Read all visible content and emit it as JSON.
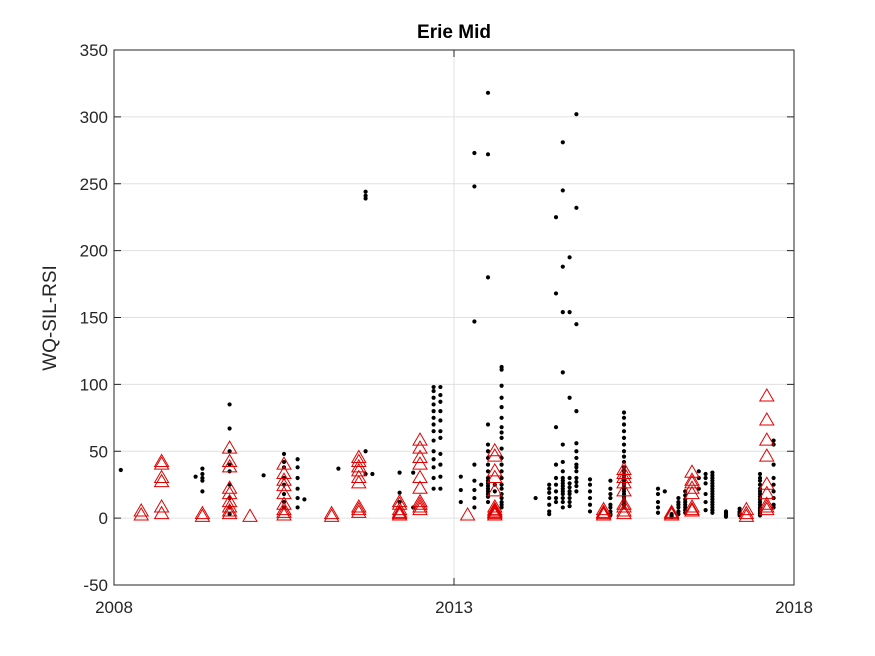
{
  "chart_data": {
    "type": "scatter",
    "title": "Erie Mid",
    "xlabel": "",
    "ylabel": "WQ-SIL-RSI",
    "xlim": [
      2008,
      2018
    ],
    "ylim": [
      -50,
      350
    ],
    "xticks": [
      2008,
      2013,
      2018
    ],
    "yticks": [
      -50,
      0,
      50,
      100,
      150,
      200,
      250,
      300,
      350
    ],
    "x_tick_labels": [
      "2008",
      "2013",
      "2018"
    ],
    "y_tick_labels": [
      "-50",
      "0",
      "50",
      "100",
      "150",
      "200",
      "250",
      "300",
      "350"
    ],
    "grid": true,
    "colors": {
      "dots": "#000000",
      "triangles": "#e00000",
      "axes": "#262626",
      "grid": "#e0e0e0"
    },
    "series": [
      {
        "marker": "dot",
        "x": [
          2008.1,
          2009.2,
          2009.3,
          2009.3,
          2009.3,
          2009.3,
          2009.3,
          2009.7,
          2009.7,
          2009.7,
          2009.7,
          2009.7,
          2009.7,
          2009.7,
          2009.7,
          2009.7,
          2010.2,
          2010.5,
          2010.5,
          2010.5,
          2010.5,
          2010.5,
          2010.5,
          2010.5,
          2010.5,
          2010.7,
          2010.7,
          2010.7,
          2010.7,
          2010.7,
          2010.7,
          2010.8,
          2011.3,
          2011.7,
          2011.7,
          2011.7,
          2011.7,
          2011.7,
          2011.8,
          2012.2,
          2012.2,
          2012.2,
          2012.4,
          2012.4,
          2012.7,
          2012.7,
          2012.7,
          2012.7,
          2012.7,
          2012.7,
          2012.7,
          2012.7,
          2012.7,
          2012.7,
          2012.7,
          2012.7,
          2012.7,
          2012.7,
          2012.8,
          2012.8,
          2012.8,
          2012.8,
          2012.8,
          2012.8,
          2012.8,
          2012.8,
          2012.8,
          2012.8,
          2012.8,
          2013.1,
          2013.1,
          2013.1,
          2013.3,
          2013.3,
          2013.3,
          2013.3,
          2013.3,
          2013.3,
          2013.3,
          2013.3,
          2013.4,
          2013.5,
          2013.5,
          2013.5,
          2013.5,
          2013.5,
          2013.5,
          2013.5,
          2013.5,
          2013.5,
          2013.5,
          2013.5,
          2013.5,
          2013.5,
          2013.5,
          2013.5,
          2013.5,
          2013.5,
          2013.5,
          2013.6,
          2013.6,
          2013.7,
          2013.7,
          2013.7,
          2013.7,
          2013.7,
          2013.7,
          2013.7,
          2013.7,
          2013.7,
          2013.7,
          2013.7,
          2013.7,
          2013.7,
          2013.7,
          2013.7,
          2013.7,
          2013.7,
          2013.7,
          2013.7,
          2013.7,
          2013.7,
          2014.2,
          2014.4,
          2014.4,
          2014.4,
          2014.4,
          2014.4,
          2014.4,
          2014.4,
          2014.5,
          2014.5,
          2014.5,
          2014.5,
          2014.5,
          2014.5,
          2014.5,
          2014.5,
          2014.5,
          2014.6,
          2014.6,
          2014.6,
          2014.6,
          2014.6,
          2014.6,
          2014.6,
          2014.6,
          2014.6,
          2014.6,
          2014.6,
          2014.6,
          2014.6,
          2014.6,
          2014.6,
          2014.6,
          2014.6,
          2014.6,
          2014.7,
          2014.7,
          2014.7,
          2014.7,
          2014.7,
          2014.7,
          2014.7,
          2014.7,
          2014.7,
          2014.7,
          2014.7,
          2014.8,
          2014.8,
          2014.8,
          2014.8,
          2014.8,
          2014.8,
          2014.8,
          2014.8,
          2014.8,
          2014.8,
          2014.8,
          2014.8,
          2014.8,
          2014.8,
          2015.0,
          2015.0,
          2015.0,
          2015.0,
          2015.0,
          2015.0,
          2015.3,
          2015.3,
          2015.3,
          2015.3,
          2015.3,
          2015.3,
          2015.3,
          2015.3,
          2015.3,
          2015.5,
          2015.5,
          2015.5,
          2015.5,
          2015.5,
          2015.5,
          2015.5,
          2015.5,
          2015.5,
          2015.5,
          2015.5,
          2015.5,
          2015.5,
          2015.5,
          2015.5,
          2015.5,
          2015.5,
          2015.5,
          2015.5,
          2015.5,
          2015.5,
          2015.5,
          2015.5,
          2015.5,
          2016.0,
          2016.0,
          2016.0,
          2016.0,
          2016.0,
          2016.1,
          2016.2,
          2016.2,
          2016.2,
          2016.3,
          2016.3,
          2016.3,
          2016.3,
          2016.3,
          2016.3,
          2016.4,
          2016.4,
          2016.4,
          2016.4,
          2016.4,
          2016.4,
          2016.4,
          2016.4,
          2016.6,
          2016.6,
          2016.6,
          2016.7,
          2016.7,
          2016.7,
          2016.7,
          2016.7,
          2016.7,
          2016.8,
          2016.8,
          2016.8,
          2016.8,
          2016.8,
          2016.8,
          2016.8,
          2016.8,
          2016.8,
          2016.8,
          2016.8,
          2016.8,
          2016.8,
          2016.8,
          2016.8,
          2016.8,
          2017.0,
          2017.0,
          2017.0,
          2017.0,
          2017.0,
          2017.2,
          2017.2,
          2017.2,
          2017.2,
          2017.2,
          2017.5,
          2017.5,
          2017.5,
          2017.5,
          2017.5,
          2017.5,
          2017.5,
          2017.5,
          2017.5,
          2017.5,
          2017.5,
          2017.5,
          2017.5,
          2017.5,
          2017.5,
          2017.5,
          2017.5,
          2017.5,
          2017.7,
          2017.7,
          2017.7,
          2017.7,
          2017.7,
          2017.7,
          2017.7,
          2017.7,
          2017.7
        ],
        "y": [
          36,
          31,
          30,
          37,
          33,
          28,
          20,
          85,
          67,
          50,
          40,
          35,
          25,
          15,
          8,
          3,
          32,
          48,
          42,
          38,
          30,
          25,
          18,
          12,
          8,
          44,
          38,
          30,
          22,
          15,
          8,
          14,
          37,
          244,
          241,
          239,
          50,
          33,
          33,
          34,
          19,
          12,
          34,
          8,
          98,
          95,
          90,
          85,
          80,
          75,
          70,
          65,
          58,
          50,
          44,
          38,
          30,
          22,
          98,
          92,
          87,
          80,
          73,
          65,
          60,
          48,
          40,
          31,
          22,
          31,
          21,
          12,
          273,
          248,
          147,
          40,
          28,
          21,
          15,
          8,
          25,
          318,
          272,
          180,
          70,
          55,
          50,
          45,
          40,
          35,
          30,
          28,
          26,
          24,
          22,
          20,
          18,
          16,
          12,
          25,
          20,
          113,
          111,
          99,
          90,
          83,
          75,
          68,
          64,
          60,
          52,
          45,
          40,
          35,
          30,
          25,
          22,
          18,
          15,
          12,
          10,
          8,
          15,
          25,
          22,
          19,
          15,
          10,
          5,
          3,
          225,
          168,
          68,
          40,
          30,
          25,
          20,
          15,
          12,
          281,
          245,
          188,
          154,
          109,
          55,
          42,
          35,
          30,
          28,
          26,
          24,
          22,
          20,
          18,
          15,
          12,
          8,
          195,
          154,
          90,
          30,
          26,
          23,
          20,
          18,
          15,
          12,
          9,
          302,
          232,
          145,
          80,
          56,
          50,
          45,
          40,
          38,
          35,
          30,
          27,
          24,
          20,
          29,
          25,
          20,
          15,
          10,
          5,
          28,
          22,
          18,
          15,
          10,
          8,
          5,
          3,
          2,
          79,
          75,
          70,
          65,
          60,
          55,
          50,
          46,
          42,
          38,
          35,
          32,
          30,
          28,
          26,
          24,
          22,
          20,
          18,
          16,
          14,
          12,
          10,
          8,
          22,
          18,
          12,
          8,
          4,
          20,
          3,
          2,
          1,
          15,
          12,
          10,
          8,
          5,
          3,
          20,
          17,
          14,
          12,
          10,
          8,
          6,
          4,
          35,
          30,
          22,
          33,
          30,
          26,
          18,
          12,
          6,
          34,
          32,
          30,
          28,
          26,
          24,
          22,
          20,
          18,
          16,
          14,
          12,
          10,
          8,
          6,
          4,
          5,
          4,
          3,
          2,
          1,
          7,
          5,
          4,
          3,
          2,
          33,
          30,
          28,
          25,
          22,
          20,
          18,
          16,
          14,
          12,
          10,
          8,
          7,
          6,
          5,
          4,
          3,
          2,
          58,
          55,
          40,
          30,
          25,
          20,
          15,
          10,
          8
        ]
      },
      {
        "marker": "triangle",
        "x": [
          2008.4,
          2008.4,
          2008.7,
          2008.7,
          2008.7,
          2008.7,
          2008.7,
          2008.7,
          2009.3,
          2009.3,
          2009.7,
          2009.7,
          2009.7,
          2009.7,
          2009.7,
          2009.7,
          2009.7,
          2009.7,
          2009.7,
          2010.0,
          2010.5,
          2010.5,
          2010.5,
          2010.5,
          2010.5,
          2010.5,
          2010.5,
          2010.5,
          2010.5,
          2011.2,
          2011.2,
          2011.6,
          2011.6,
          2011.6,
          2011.6,
          2011.6,
          2011.6,
          2011.6,
          2011.6,
          2011.6,
          2012.2,
          2012.2,
          2012.2,
          2012.2,
          2012.2,
          2012.2,
          2012.5,
          2012.5,
          2012.5,
          2012.5,
          2012.5,
          2012.5,
          2012.5,
          2012.5,
          2012.5,
          2012.5,
          2013.2,
          2013.6,
          2013.6,
          2013.6,
          2013.6,
          2013.6,
          2013.6,
          2013.6,
          2013.6,
          2013.6,
          2013.6,
          2013.6,
          2015.2,
          2015.2,
          2015.2,
          2015.2,
          2015.5,
          2015.5,
          2015.5,
          2015.5,
          2015.5,
          2015.5,
          2015.5,
          2015.5,
          2015.5,
          2016.2,
          2016.2,
          2016.2,
          2016.5,
          2016.5,
          2016.5,
          2016.5,
          2016.5,
          2016.5,
          2016.5,
          2016.5,
          2017.3,
          2017.3,
          2017.3,
          2017.6,
          2017.6,
          2017.6,
          2017.6,
          2017.6,
          2017.6,
          2017.6,
          2017.6,
          2017.6
        ],
        "y": [
          5,
          2,
          42,
          40,
          30,
          27,
          8,
          3,
          3,
          1,
          52,
          42,
          38,
          22,
          18,
          12,
          8,
          5,
          3,
          1,
          40,
          33,
          28,
          24,
          18,
          10,
          6,
          4,
          2,
          3,
          1,
          45,
          42,
          38,
          35,
          30,
          26,
          8,
          6,
          4,
          12,
          10,
          6,
          4,
          3,
          2,
          58,
          52,
          45,
          40,
          30,
          22,
          12,
          10,
          8,
          6,
          2,
          50,
          46,
          35,
          30,
          20,
          8,
          6,
          5,
          4,
          3,
          2,
          6,
          4,
          3,
          2,
          36,
          33,
          30,
          26,
          20,
          10,
          8,
          5,
          3,
          4,
          3,
          2,
          34,
          28,
          26,
          22,
          18,
          8,
          6,
          5,
          6,
          3,
          1,
          91,
          73,
          58,
          46,
          25,
          18,
          10,
          8,
          6
        ]
      }
    ]
  }
}
